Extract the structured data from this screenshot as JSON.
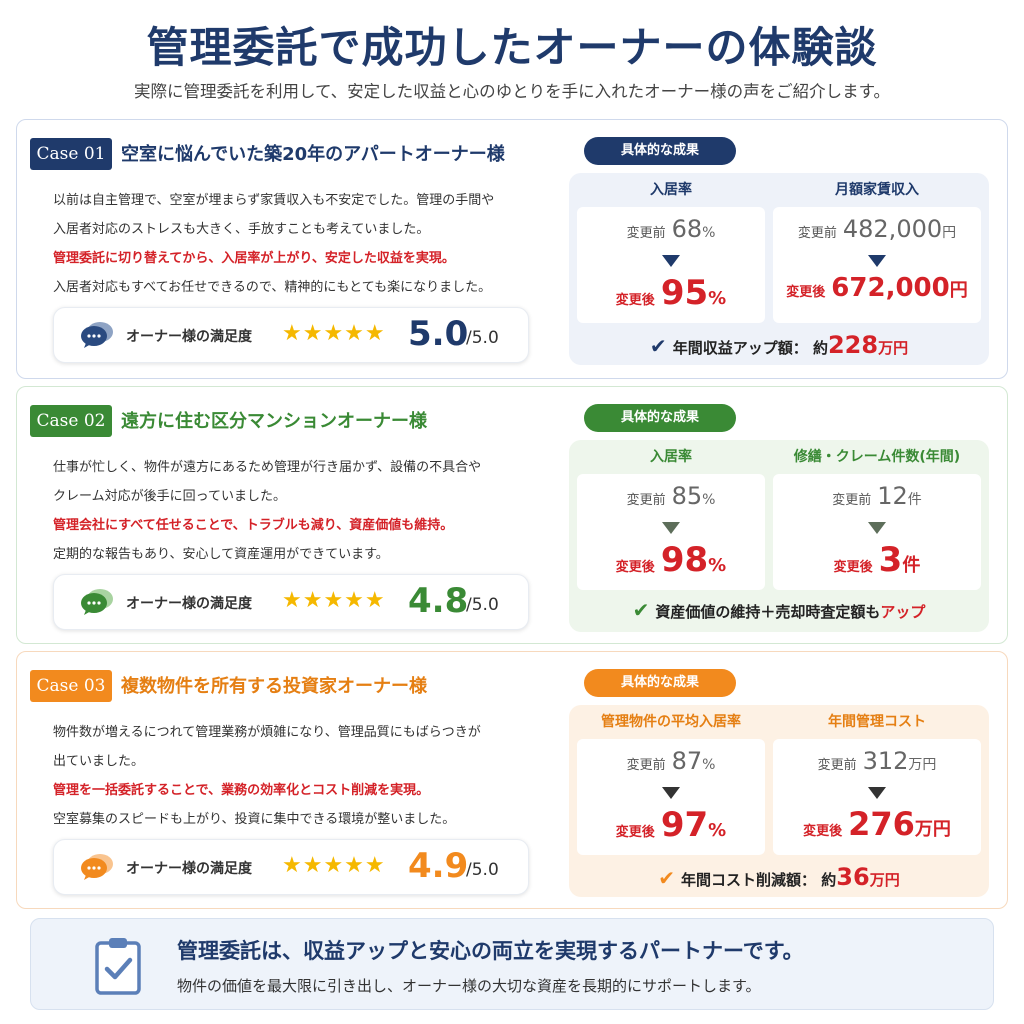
{
  "header": {
    "title": "管理委託で成功したオーナーの体験談",
    "subtitle": "実際に管理委託を利用して、安定した収益と心のゆとりを手に入れたオーナー様の声をご紹介します。"
  },
  "colors": {
    "navy": "#1f3a6b",
    "green": "#3a8a35",
    "orange": "#f28a1e",
    "red": "#d42228",
    "star": "#f5b800"
  },
  "cases": [
    {
      "badge": "Case 01",
      "title": "空室に悩んでいた築20年のアパートオーナー様",
      "lines": [
        "以前は自主管理で、空室が埋まらず家賃収入も不安定でした。管理の手間や",
        "入居者対応のストレスも大きく、手放すことも考えていました。",
        "管理委託に切り替えてから、入居率が上がり、安定した収益を実現。",
        "入居者対応もすべてお任せできるので、精神的にもとても楽になりました。"
      ],
      "satisfaction_label": "オーナー様の満足度",
      "stars": "★★★★★",
      "score": "5.0",
      "score_max": "/5.0",
      "results_label": "具体的な成果",
      "metric1": {
        "head": "入居率",
        "before_label": "変更前",
        "before_value": "68",
        "before_unit": "%",
        "after_label": "変更後",
        "after_value": "95",
        "after_unit": "%"
      },
      "metric2": {
        "head": "月額家賃収入",
        "before_label": "変更前",
        "before_value": "482,000",
        "before_unit": "円",
        "after_label": "変更後",
        "after_value": "672,000",
        "after_unit": "円"
      },
      "summary": {
        "text": "年間収益アップ額：",
        "prefix": "約",
        "value": "228",
        "unit": "万円",
        "suffix": ""
      }
    },
    {
      "badge": "Case 02",
      "title": "遠方に住む区分マンションオーナー様",
      "lines": [
        "仕事が忙しく、物件が遠方にあるため管理が行き届かず、設備の不具合や",
        "クレーム対応が後手に回っていました。",
        "管理会社にすべて任せることで、トラブルも減り、資産価値も維持。",
        "定期的な報告もあり、安心して資産運用ができています。"
      ],
      "satisfaction_label": "オーナー様の満足度",
      "stars": "★★★★★",
      "score": "4.8",
      "score_max": "/5.0",
      "results_label": "具体的な成果",
      "metric1": {
        "head": "入居率",
        "before_label": "変更前",
        "before_value": "85",
        "before_unit": "%",
        "after_label": "変更後",
        "after_value": "98",
        "after_unit": "%"
      },
      "metric2": {
        "head": "修繕・クレーム件数(年間)",
        "before_label": "変更前",
        "before_value": "12",
        "before_unit": "件",
        "after_label": "変更後",
        "after_value": "3",
        "after_unit": "件"
      },
      "summary": {
        "text": "資産価値の維持＋売却時査定額も",
        "prefix": "",
        "value": "",
        "unit": "",
        "suffix": "アップ"
      }
    },
    {
      "badge": "Case 03",
      "title": "複数物件を所有する投資家オーナー様",
      "lines": [
        "物件数が増えるにつれて管理業務が煩雑になり、管理品質にもばらつきが",
        "出ていました。",
        "管理を一括委託することで、業務の効率化とコスト削減を実現。",
        "空室募集のスピードも上がり、投資に集中できる環境が整いました。"
      ],
      "satisfaction_label": "オーナー様の満足度",
      "stars": "★★★★★",
      "score": "4.9",
      "score_max": "/5.0",
      "results_label": "具体的な成果",
      "metric1": {
        "head": "管理物件の平均入居率",
        "before_label": "変更前",
        "before_value": "87",
        "before_unit": "%",
        "after_label": "変更後",
        "after_value": "97",
        "after_unit": "%"
      },
      "metric2": {
        "head": "年間管理コスト",
        "before_label": "変更前",
        "before_value": "312",
        "before_unit": "万円",
        "after_label": "変更後",
        "after_value": "276",
        "after_unit": "万円"
      },
      "summary": {
        "text": "年間コスト削減額：",
        "prefix": "約",
        "value": "36",
        "unit": "万円",
        "suffix": ""
      }
    }
  ],
  "footer": {
    "title": "管理委託は、収益アップと安心の両立を実現するパートナーです。",
    "subtitle": "物件の価値を最大限に引き出し、オーナー様の大切な資産を長期的にサポートします。"
  }
}
